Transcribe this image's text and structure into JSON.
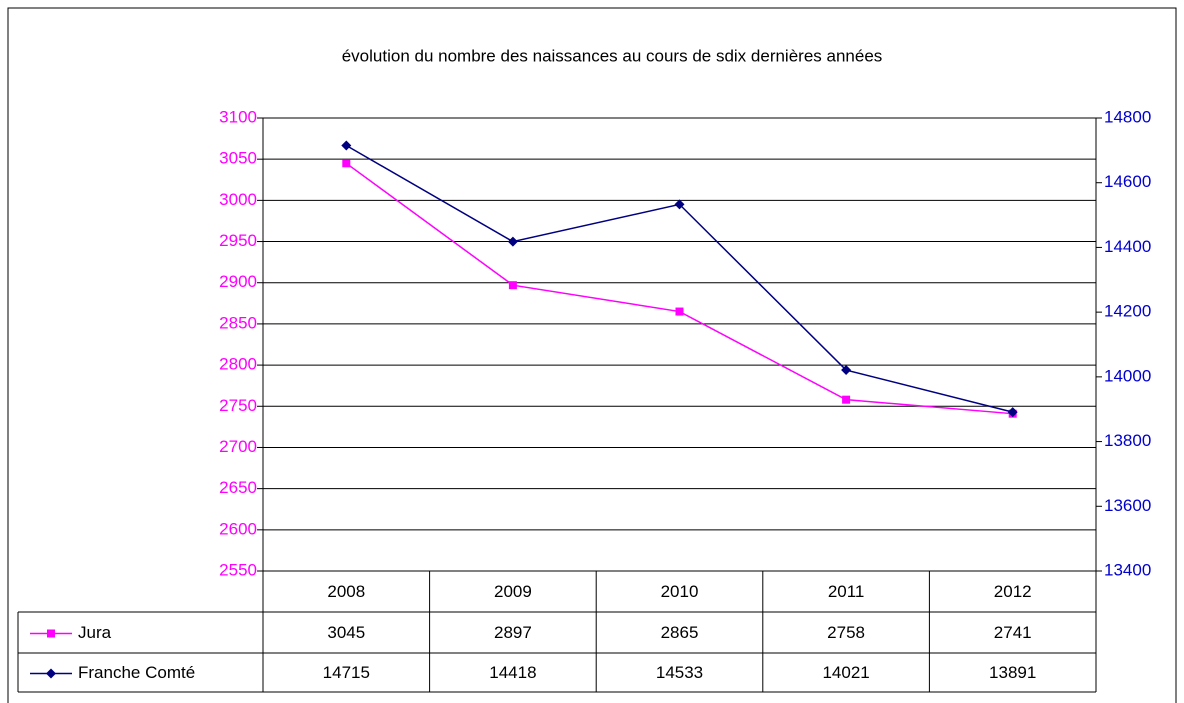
{
  "chart_data": {
    "type": "line",
    "title": "évolution du nombre des naissances au cours de sdix dernières années",
    "categories": [
      "2008",
      "2009",
      "2010",
      "2011",
      "2012"
    ],
    "series": [
      {
        "name": "Jura",
        "color": "#ff00ff",
        "marker": "square",
        "values": [
          3045,
          2897,
          2865,
          2758,
          2741
        ]
      },
      {
        "name": "Franche Comté",
        "color": "#000080",
        "marker": "diamond",
        "axis": "y2",
        "values": [
          14715,
          14418,
          14533,
          14021,
          13891
        ]
      }
    ],
    "ylim": [
      2550,
      3100
    ],
    "yticks": [
      2550,
      2600,
      2650,
      2700,
      2750,
      2800,
      2850,
      2900,
      2950,
      3000,
      3050,
      3100
    ],
    "y2lim": [
      13400,
      14800
    ],
    "y2ticks": [
      13400,
      13600,
      13800,
      14000,
      14200,
      14400,
      14600,
      14800
    ],
    "ytick_color": "#ff00ff",
    "y2tick_color": "#0000cc",
    "grid": true
  }
}
